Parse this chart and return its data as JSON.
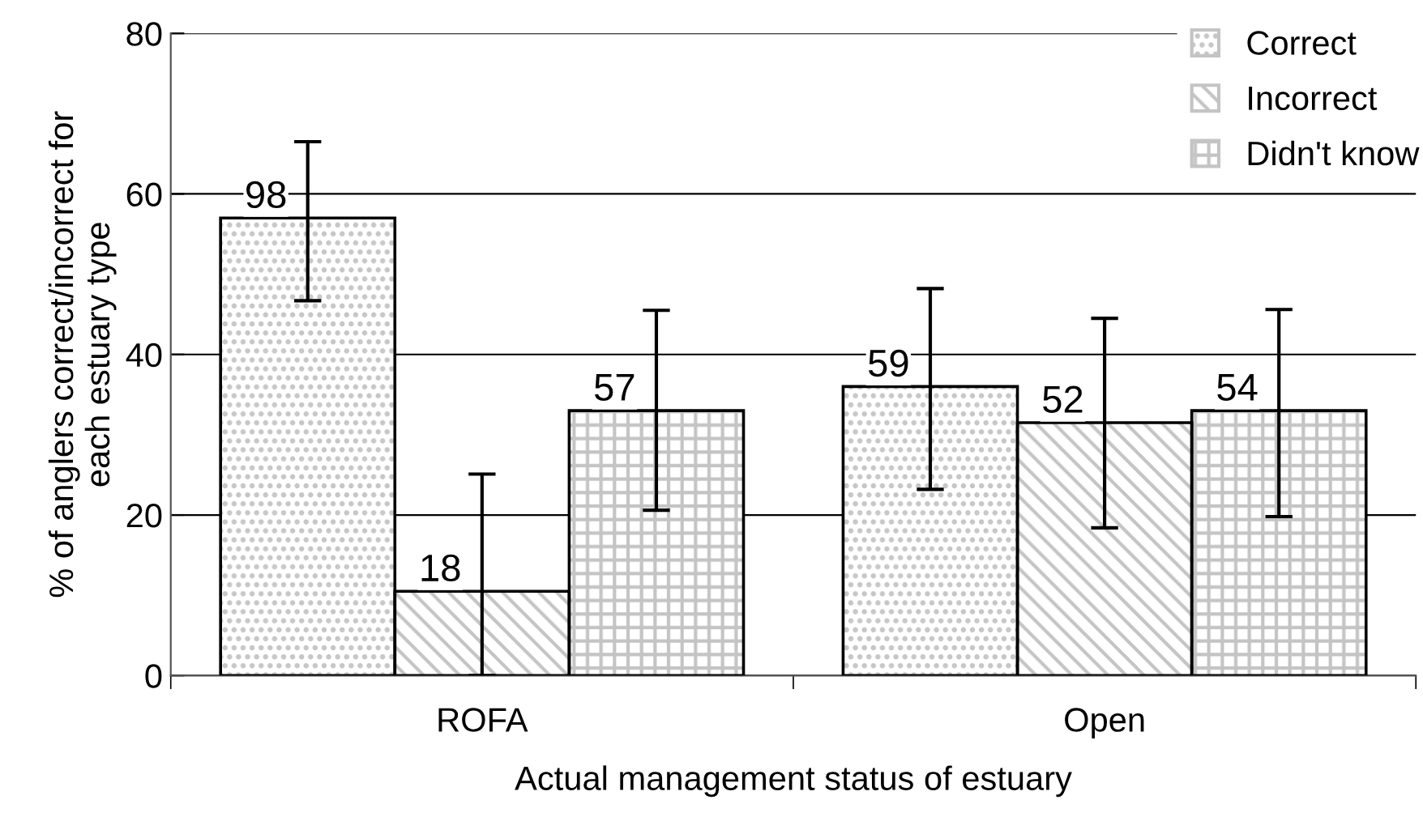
{
  "chart_data": {
    "type": "bar",
    "xlabel": "Actual management status of estuary",
    "ylabel": "% of anglers correct/incorrect for\neach estuary type",
    "categories": [
      "ROFA",
      "Open"
    ],
    "series": [
      {
        "name": "Correct",
        "color": "#c4c4c4",
        "values": [
          57,
          36
        ],
        "errors": [
          [
            46.7,
            66.5
          ],
          [
            23.2,
            48.2
          ]
        ]
      },
      {
        "name": "Incorrect",
        "color": "#c4c4c4",
        "values": [
          10.5,
          31.5
        ],
        "errors": [
          [
            0,
            25.1
          ],
          [
            18.4,
            44.5
          ]
        ]
      },
      {
        "name": "Didn't know",
        "color": "#c4c4c4",
        "values": [
          33,
          33
        ],
        "errors": [
          [
            20.6,
            45.5
          ],
          [
            19.8,
            45.6
          ]
        ]
      }
    ],
    "annotations": [
      "98",
      "18",
      "57",
      "59",
      "52",
      "54"
    ],
    "ylim": [
      0,
      80
    ],
    "yticks": [
      0,
      20,
      40,
      60,
      80
    ],
    "grid": "y",
    "legend": "top right"
  }
}
